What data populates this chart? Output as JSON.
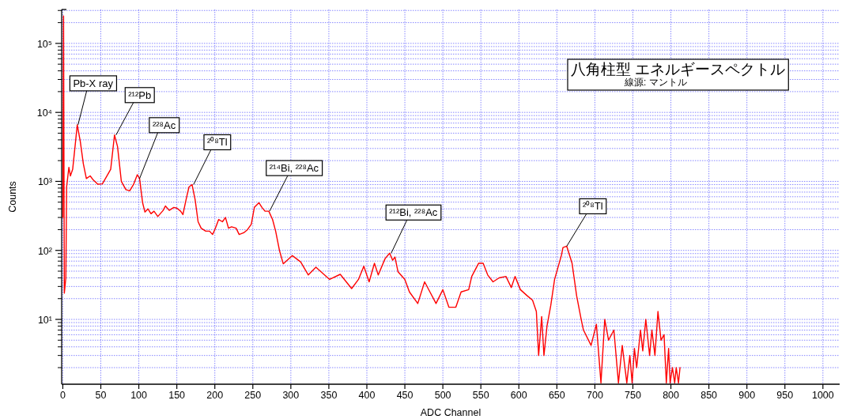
{
  "chart_data": {
    "type": "line",
    "title": "八角柱型 エネルギースペクトル",
    "subtitle": "線源: マントル",
    "xlabel": "ADC Channel",
    "ylabel": "Counts",
    "log": "y",
    "grid": true,
    "line_style": "solid",
    "marker": "none",
    "xlim": [
      -1.5,
      1022
    ],
    "xticks": [
      0,
      50,
      100,
      150,
      200,
      250,
      300,
      350,
      400,
      450,
      500,
      550,
      600,
      650,
      700,
      750,
      800,
      850,
      900,
      950,
      1000
    ],
    "ylim": [
      1.15,
      310000
    ],
    "yticks": [
      {
        "value": 10,
        "label": "10¹"
      },
      {
        "value": 100,
        "label": "10²"
      },
      {
        "value": 1000,
        "label": "10³"
      },
      {
        "value": 10000,
        "label": "10⁴"
      },
      {
        "value": 100000,
        "label": "10⁵"
      }
    ],
    "series": [
      {
        "color": "#ff0000",
        "x": [
          0,
          1,
          2,
          4,
          5,
          8,
          10,
          13,
          17,
          19,
          23,
          27,
          31,
          36,
          40,
          46,
          52,
          58,
          63,
          68,
          72,
          77,
          83,
          88,
          93,
          98,
          101,
          105,
          108,
          112,
          116,
          120,
          125,
          132,
          135,
          140,
          146,
          150,
          155,
          158,
          163,
          166,
          170,
          174,
          178,
          182,
          188,
          193,
          197,
          200,
          205,
          210,
          214,
          218,
          222,
          228,
          232,
          238,
          243,
          248,
          252,
          258,
          262,
          266,
          271,
          276,
          280,
          285,
          290,
          302,
          313,
          323,
          333,
          351,
          365,
          380,
          389,
          396,
          403,
          410,
          415,
          424,
          430,
          434,
          437,
          441,
          450,
          456,
          467,
          476,
          483,
          491,
          500,
          508,
          517,
          524,
          534,
          538,
          547,
          553,
          559,
          566,
          574,
          583,
          590,
          595,
          602,
          611,
          618,
          623,
          626,
          630,
          633,
          637,
          642,
          647,
          656,
          658,
          663,
          670,
          676,
          682,
          685,
          695,
          702,
          708,
          713,
          718,
          725,
          731,
          736,
          742,
          746,
          749,
          752,
          755,
          760,
          763,
          767,
          772,
          775,
          779,
          783,
          787,
          791,
          794,
          797,
          799,
          802,
          805,
          807,
          810,
          812
        ],
        "values": [
          300,
          250000,
          24,
          40,
          830,
          1600,
          1200,
          1500,
          4000,
          6600,
          3800,
          1800,
          1100,
          1200,
          1050,
          910,
          920,
          1200,
          1500,
          4700,
          3200,
          1000,
          760,
          730,
          900,
          1250,
          1100,
          490,
          360,
          400,
          340,
          370,
          310,
          380,
          440,
          380,
          420,
          410,
          370,
          330,
          600,
          830,
          900,
          550,
          260,
          210,
          190,
          190,
          170,
          200,
          280,
          260,
          300,
          210,
          220,
          210,
          170,
          180,
          200,
          240,
          420,
          490,
          420,
          370,
          370,
          280,
          190,
          100,
          64,
          84,
          68,
          44,
          57,
          38,
          45,
          28,
          38,
          59,
          35,
          65,
          44,
          76,
          91,
          72,
          80,
          49,
          38,
          25,
          17,
          35,
          25,
          17,
          27,
          15,
          15,
          25,
          27,
          42,
          65,
          65,
          44,
          35,
          40,
          42,
          29,
          42,
          27,
          22,
          19,
          13,
          3,
          11,
          3,
          8,
          16,
          38,
          85,
          110,
          115,
          65,
          22,
          10,
          7,
          4.2,
          8.5,
          1.2,
          10,
          5,
          7,
          1.2,
          4.2,
          1.2,
          3,
          1.2,
          3.8,
          2,
          7,
          3.5,
          10,
          3,
          7,
          3,
          13,
          5,
          6,
          1.2,
          3.8,
          1.2,
          2,
          1.2,
          2,
          1.2,
          2
        ]
      }
    ],
    "annotations": [
      {
        "text": "Pb-X ray",
        "x": 20,
        "y": 6600
      },
      {
        "text": "²¹²Pb",
        "x": 70,
        "y": 4700
      },
      {
        "text": "²²⁸Ac",
        "x": 101,
        "y": 1100
      },
      {
        "text": "²⁰⁸Tl",
        "x": 172,
        "y": 900
      },
      {
        "text": "²¹⁴Bi, ²²⁸Ac",
        "x": 272,
        "y": 370
      },
      {
        "text": "²¹²Bi, ²²⁸Ac",
        "x": 432,
        "y": 91
      },
      {
        "text": "²⁰⁸Tl",
        "x": 663,
        "y": 115
      }
    ]
  }
}
